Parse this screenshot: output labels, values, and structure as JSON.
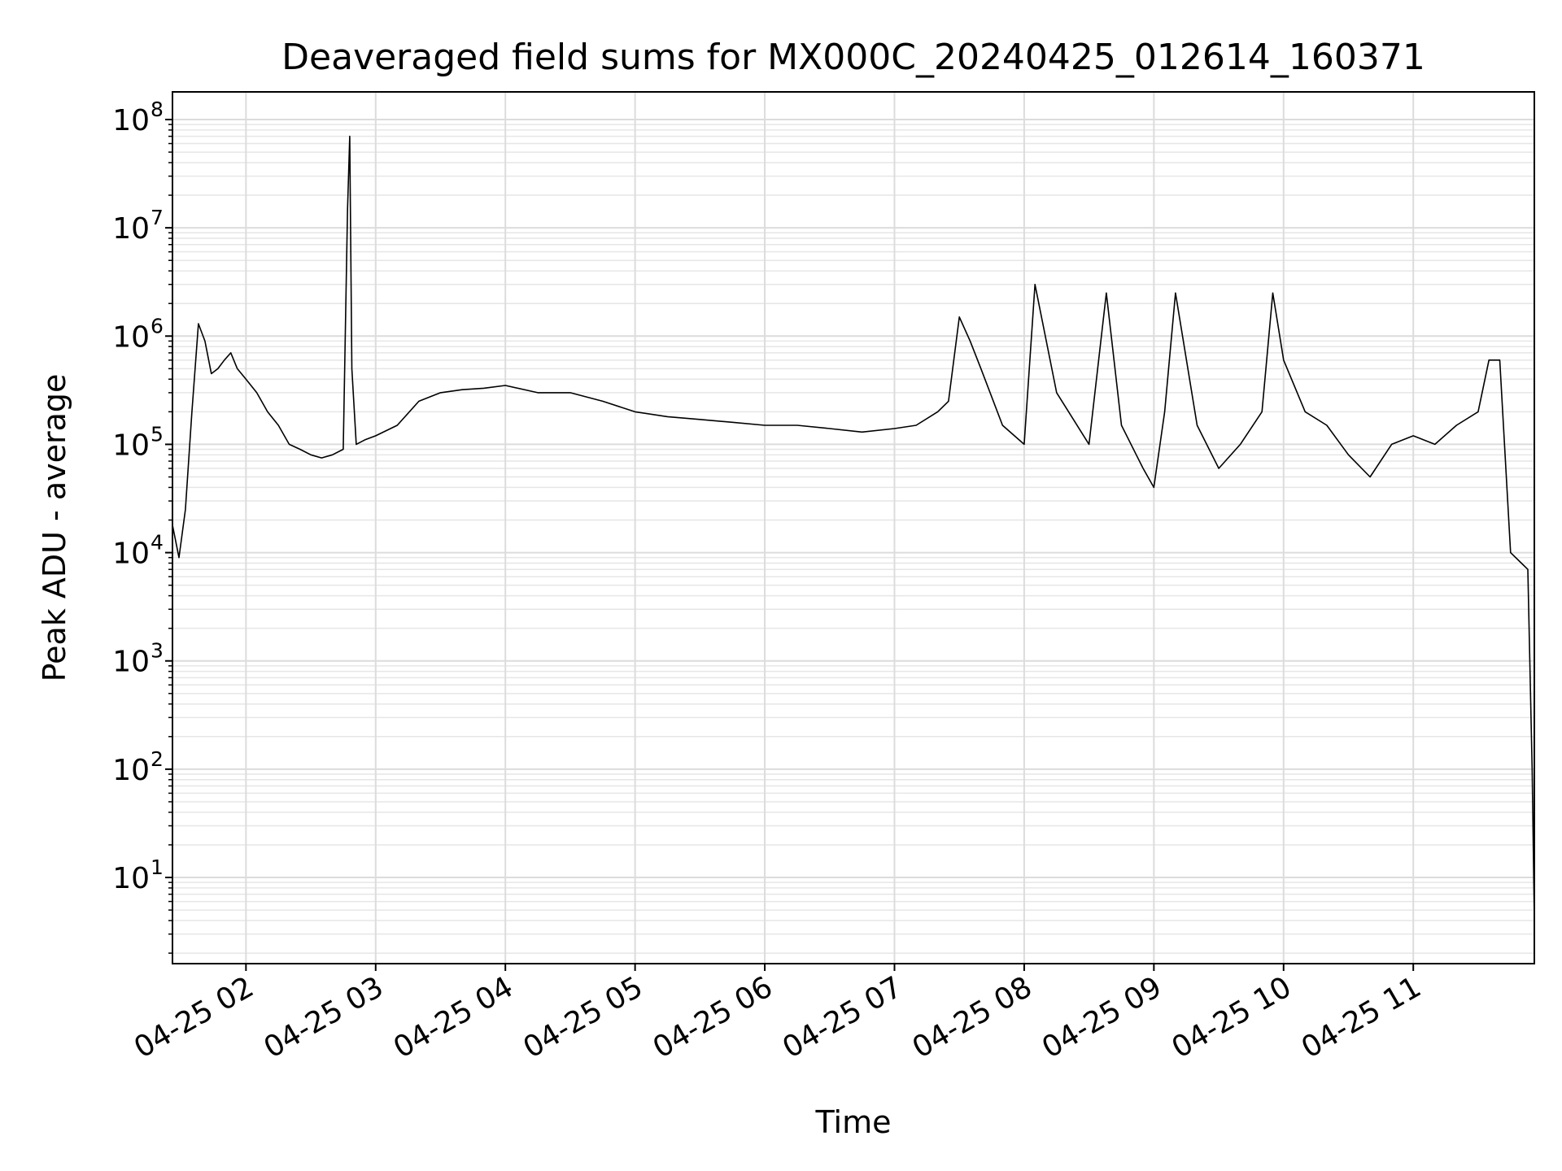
{
  "chart_data": {
    "type": "line",
    "title": "Deaveraged field sums for MX000C_20240425_012614_160371",
    "xlabel": "Time",
    "ylabel": "Peak ADU - average",
    "yscale": "log",
    "xlim": [
      "2024-04-25 01:26",
      "2024-04-25 11:56"
    ],
    "ylim": [
      1.6,
      180000000
    ],
    "grid": "major and minor",
    "x_ticks": [
      {
        "value": "2024-04-25 02:00",
        "label": "04-25 02"
      },
      {
        "value": "2024-04-25 03:00",
        "label": "04-25 03"
      },
      {
        "value": "2024-04-25 04:00",
        "label": "04-25 04"
      },
      {
        "value": "2024-04-25 05:00",
        "label": "04-25 05"
      },
      {
        "value": "2024-04-25 06:00",
        "label": "04-25 06"
      },
      {
        "value": "2024-04-25 07:00",
        "label": "04-25 07"
      },
      {
        "value": "2024-04-25 08:00",
        "label": "04-25 08"
      },
      {
        "value": "2024-04-25 09:00",
        "label": "04-25 09"
      },
      {
        "value": "2024-04-25 10:00",
        "label": "04-25 10"
      },
      {
        "value": "2024-04-25 11:00",
        "label": "04-25 11"
      }
    ],
    "y_ticks": [
      {
        "value": 10,
        "base": "10",
        "exp": "1"
      },
      {
        "value": 100,
        "base": "10",
        "exp": "2"
      },
      {
        "value": 1000,
        "base": "10",
        "exp": "3"
      },
      {
        "value": 10000,
        "base": "10",
        "exp": "4"
      },
      {
        "value": 100000,
        "base": "10",
        "exp": "5"
      },
      {
        "value": 1000000,
        "base": "10",
        "exp": "6"
      },
      {
        "value": 10000000,
        "base": "10",
        "exp": "7"
      },
      {
        "value": 100000000,
        "base": "10",
        "exp": "8"
      }
    ],
    "series": [
      {
        "color": "#000000",
        "x": [
          "2024-04-25 01:26",
          "2024-04-25 01:29",
          "2024-04-25 01:32",
          "2024-04-25 01:35",
          "2024-04-25 01:38",
          "2024-04-25 01:41",
          "2024-04-25 01:44",
          "2024-04-25 01:47",
          "2024-04-25 01:50",
          "2024-04-25 01:53",
          "2024-04-25 01:56",
          "2024-04-25 02:00",
          "2024-04-25 02:05",
          "2024-04-25 02:10",
          "2024-04-25 02:15",
          "2024-04-25 02:20",
          "2024-04-25 02:25",
          "2024-04-25 02:30",
          "2024-04-25 02:35",
          "2024-04-25 02:40",
          "2024-04-25 02:45",
          "2024-04-25 02:47",
          "2024-04-25 02:48",
          "2024-04-25 02:49",
          "2024-04-25 02:51",
          "2024-04-25 02:55",
          "2024-04-25 03:00",
          "2024-04-25 03:10",
          "2024-04-25 03:20",
          "2024-04-25 03:30",
          "2024-04-25 03:40",
          "2024-04-25 03:50",
          "2024-04-25 04:00",
          "2024-04-25 04:15",
          "2024-04-25 04:30",
          "2024-04-25 04:45",
          "2024-04-25 05:00",
          "2024-04-25 05:15",
          "2024-04-25 05:30",
          "2024-04-25 05:45",
          "2024-04-25 06:00",
          "2024-04-25 06:15",
          "2024-04-25 06:30",
          "2024-04-25 06:45",
          "2024-04-25 07:00",
          "2024-04-25 07:10",
          "2024-04-25 07:20",
          "2024-04-25 07:25",
          "2024-04-25 07:30",
          "2024-04-25 07:35",
          "2024-04-25 07:40",
          "2024-04-25 07:50",
          "2024-04-25 08:00",
          "2024-04-25 08:05",
          "2024-04-25 08:15",
          "2024-04-25 08:30",
          "2024-04-25 08:38",
          "2024-04-25 08:45",
          "2024-04-25 08:55",
          "2024-04-25 09:00",
          "2024-04-25 09:05",
          "2024-04-25 09:10",
          "2024-04-25 09:20",
          "2024-04-25 09:30",
          "2024-04-25 09:40",
          "2024-04-25 09:50",
          "2024-04-25 09:55",
          "2024-04-25 10:00",
          "2024-04-25 10:10",
          "2024-04-25 10:20",
          "2024-04-25 10:30",
          "2024-04-25 10:40",
          "2024-04-25 10:50",
          "2024-04-25 11:00",
          "2024-04-25 11:10",
          "2024-04-25 11:20",
          "2024-04-25 11:30",
          "2024-04-25 11:35",
          "2024-04-25 11:40",
          "2024-04-25 11:45",
          "2024-04-25 11:50",
          "2024-04-25 11:53",
          "2024-04-25 11:55",
          "2024-04-25 11:56"
        ],
        "y": [
          18000,
          9000,
          25000,
          200000,
          1300000,
          900000,
          450000,
          500000,
          600000,
          700000,
          500000,
          400000,
          300000,
          200000,
          150000,
          100000,
          90000,
          80000,
          75000,
          80000,
          90000,
          15000000,
          70000000,
          500000,
          100000,
          110000,
          120000,
          150000,
          250000,
          300000,
          320000,
          330000,
          350000,
          300000,
          300000,
          250000,
          200000,
          180000,
          170000,
          160000,
          150000,
          150000,
          140000,
          130000,
          140000,
          150000,
          200000,
          250000,
          1500000,
          900000,
          500000,
          150000,
          100000,
          3000000,
          300000,
          100000,
          2500000,
          150000,
          60000,
          40000,
          200000,
          2500000,
          150000,
          60000,
          100000,
          200000,
          2500000,
          600000,
          200000,
          150000,
          80000,
          50000,
          100000,
          120000,
          100000,
          150000,
          200000,
          600000,
          600000,
          10000,
          8000,
          7000,
          100,
          4
        ]
      }
    ]
  }
}
